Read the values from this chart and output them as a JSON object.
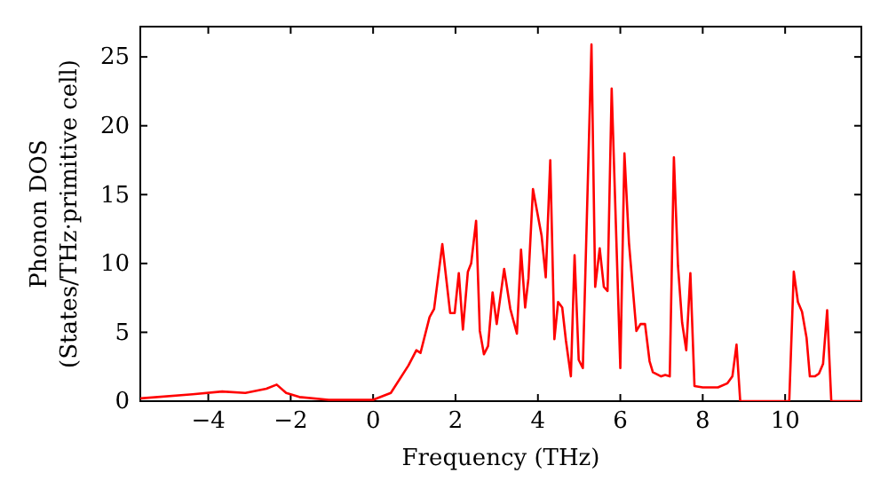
{
  "chart_data": {
    "type": "line",
    "xlabel": "Frequency (THz)",
    "ylabel": "Phonon DOS\n(States/THz·primitive cell)",
    "xlim": [
      -5.65,
      11.85
    ],
    "ylim": [
      0,
      27.2
    ],
    "xticks": [
      -4,
      -2,
      0,
      2,
      4,
      6,
      8,
      10
    ],
    "yticks": [
      0,
      5,
      10,
      15,
      20,
      25
    ],
    "grid": false,
    "series": [
      {
        "color": "#ff0000",
        "x": [
          -5.65,
          -4.38,
          -3.66,
          -3.1,
          -2.59,
          -2.34,
          -2.11,
          -1.79,
          -1.08,
          -0.2,
          0,
          0.43,
          0.86,
          1.05,
          1.15,
          1.37,
          1.48,
          1.68,
          1.87,
          1.98,
          2.08,
          2.18,
          2.3,
          2.38,
          2.5,
          2.59,
          2.69,
          2.79,
          2.9,
          3.0,
          3.18,
          3.33,
          3.49,
          3.59,
          3.69,
          3.77,
          3.88,
          4.09,
          4.19,
          4.3,
          4.4,
          4.49,
          4.59,
          4.68,
          4.8,
          4.89,
          4.99,
          5.09,
          5.3,
          5.39,
          5.5,
          5.6,
          5.69,
          5.79,
          6.0,
          6.1,
          6.21,
          6.39,
          6.49,
          6.6,
          6.71,
          6.79,
          6.99,
          7.09,
          7.2,
          7.3,
          7.4,
          7.5,
          7.6,
          7.7,
          7.8,
          8.0,
          8.37,
          8.6,
          8.72,
          8.82,
          8.91,
          10.1,
          10.21,
          10.31,
          10.41,
          10.52,
          10.6,
          10.72,
          10.82,
          10.92,
          11.02,
          11.12,
          11.85
        ],
        "values": [
          0.2,
          0.5,
          0.7,
          0.6,
          0.9,
          1.2,
          0.6,
          0.3,
          0.1,
          0.1,
          0.1,
          0.6,
          2.6,
          3.7,
          3.5,
          6.1,
          6.7,
          11.4,
          6.4,
          6.4,
          9.3,
          5.2,
          9.4,
          10.0,
          13.1,
          5.1,
          3.4,
          4.0,
          7.9,
          5.6,
          9.6,
          6.7,
          4.9,
          11.0,
          6.8,
          8.9,
          15.4,
          12.0,
          9.0,
          17.5,
          4.5,
          7.2,
          6.8,
          4.4,
          1.8,
          10.6,
          3.0,
          2.4,
          25.9,
          8.3,
          11.1,
          8.3,
          8.0,
          22.7,
          2.4,
          18.0,
          11.5,
          5.1,
          5.6,
          5.6,
          2.9,
          2.1,
          1.8,
          1.9,
          1.8,
          17.7,
          9.8,
          5.7,
          3.7,
          9.3,
          1.1,
          1.0,
          1.0,
          1.3,
          1.8,
          4.1,
          0,
          0,
          9.4,
          7.2,
          6.5,
          4.6,
          1.8,
          1.8,
          2.0,
          2.7,
          6.6,
          0,
          0
        ]
      }
    ]
  }
}
